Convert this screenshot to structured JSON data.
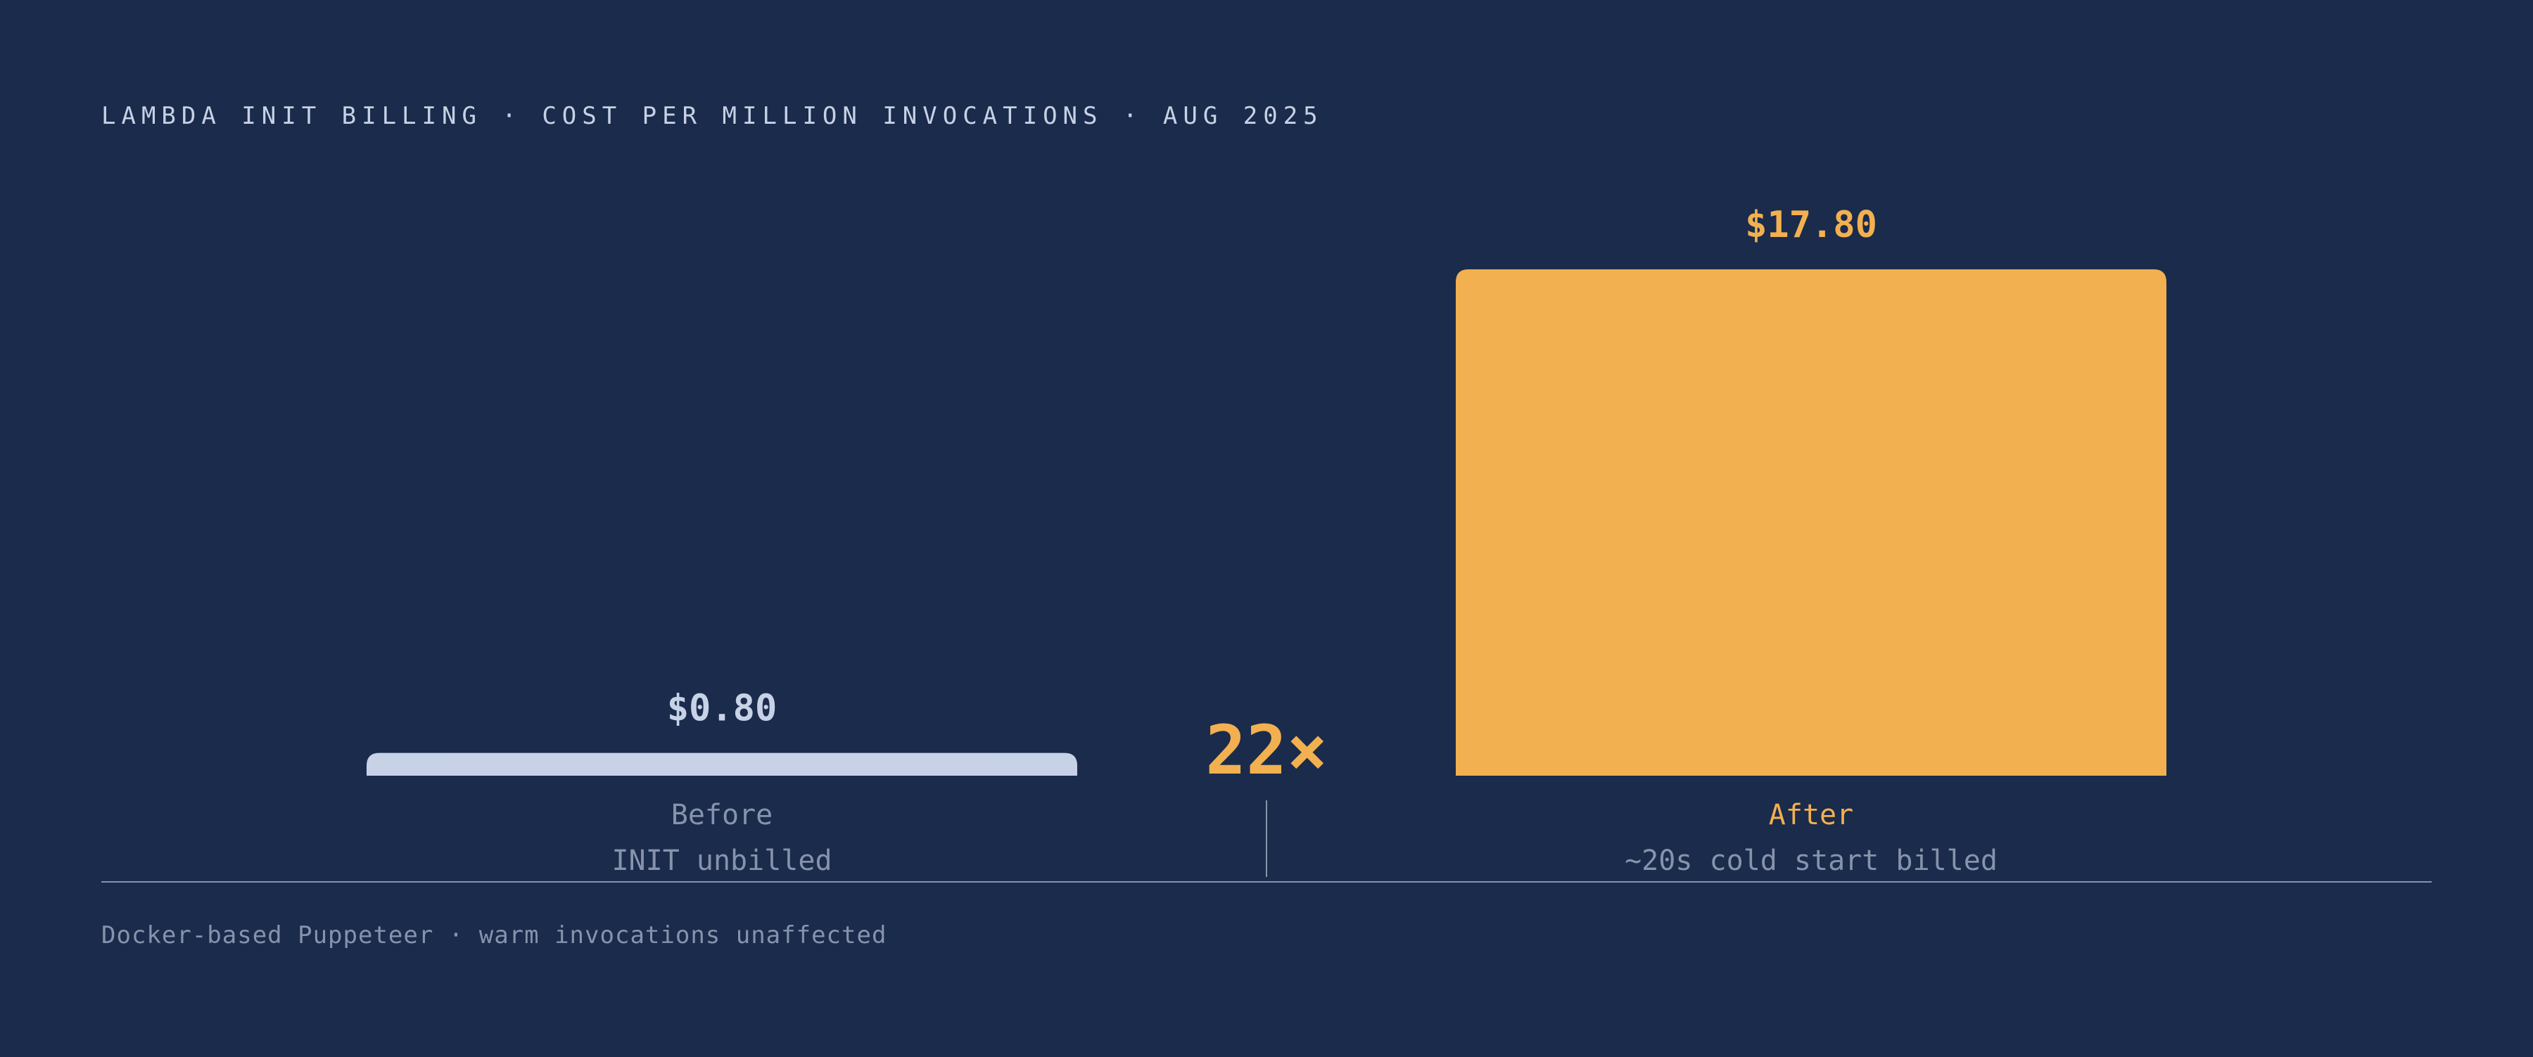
{
  "title": "LAMBDA INIT BILLING · COST PER MILLION INVOCATIONS · AUG 2025",
  "footnote": "Docker-based Puppeteer · warm invocations unaffected",
  "colors": {
    "background": "#1a2b4c",
    "before_bar": "#c8d2e6",
    "after_bar": "#f2b050",
    "muted_text": "#8793ab",
    "axis_line": "#8793ab"
  },
  "chart_data": {
    "type": "bar",
    "title": "LAMBDA INIT BILLING · COST PER MILLION INVOCATIONS · AUG 2025",
    "unit": "$ per million invocations",
    "categories": [
      "Before",
      "After"
    ],
    "subtitles": [
      "INIT unbilled",
      "~20s cold start billed"
    ],
    "values": [
      0.8,
      17.8
    ],
    "value_labels": [
      "$0.80",
      "$17.80"
    ],
    "multiplier_label": "22×",
    "ylim": [
      0,
      17.8
    ],
    "grid": false,
    "legend": "none"
  }
}
